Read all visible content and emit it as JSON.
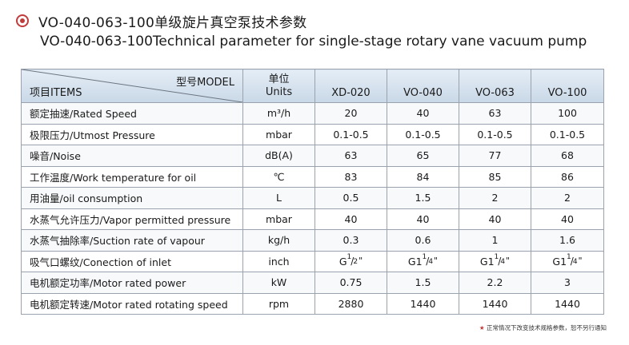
{
  "title": {
    "cn": "VO-040-063-100单级旋片真空泵技术参数",
    "en": "VO-040-063-100Technical parameter for single-stage rotary vane vacuum pump"
  },
  "table": {
    "header": {
      "model": "型号MODEL",
      "items": "项目ITEMS",
      "units_cn": "单位",
      "units_en": "Units",
      "models": [
        "XD-020",
        "VO-040",
        "VO-063",
        "VO-100"
      ]
    },
    "rows": [
      {
        "label": "额定抽速/Rated Speed",
        "unit": "m³/h",
        "values": [
          "20",
          "40",
          "63",
          "100"
        ]
      },
      {
        "label": "极限压力/Utmost Pressure",
        "unit": "mbar",
        "values": [
          "0.1-0.5",
          "0.1-0.5",
          "0.1-0.5",
          "0.1-0.5"
        ]
      },
      {
        "label": "噪音/Noise",
        "unit": "dB(A)",
        "values": [
          "63",
          "65",
          "77",
          "68"
        ]
      },
      {
        "label": "工作温度/Work temperature for oil",
        "unit": "℃",
        "values": [
          "83",
          "84",
          "85",
          "86"
        ]
      },
      {
        "label": "用油量/oil consumption",
        "unit": "L",
        "values": [
          "0.5",
          "1.5",
          "2",
          "2"
        ]
      },
      {
        "label": "水蒸气允许压力/Vapor permitted pressure",
        "unit": "mbar",
        "values": [
          "40",
          "40",
          "40",
          "40"
        ]
      },
      {
        "label": "水蒸气抽除率/Suction rate of vapour",
        "unit": "kg/h",
        "values": [
          "0.3",
          "0.6",
          "1",
          "1.6"
        ]
      },
      {
        "label": "吸气口螺纹/Conection of inlet",
        "unit": "inch",
        "fractions": [
          {
            "whole": "G",
            "num": "1",
            "den": "2",
            "mark": "\""
          },
          {
            "whole": "G1",
            "num": "1",
            "den": "4",
            "mark": "\""
          },
          {
            "whole": "G1",
            "num": "1",
            "den": "4",
            "mark": "\""
          },
          {
            "whole": "G1",
            "num": "1",
            "den": "4",
            "mark": "\""
          }
        ]
      },
      {
        "label": "电机额定功率/Motor rated power",
        "unit": "kW",
        "values": [
          "0.75",
          "1.5",
          "2.2",
          "3"
        ]
      },
      {
        "label": "电机额定转速/Motor rated rotating speed",
        "unit": "rpm",
        "values": [
          "2880",
          "1440",
          "1440",
          "1440"
        ]
      }
    ]
  },
  "note": {
    "star": "★",
    "text": "正常情况下改变技术规格参数，恕不另行通知"
  },
  "colors": {
    "accent": "#c23b3b",
    "header_bg": "#d6e2ee",
    "border": "#9aa3ad"
  }
}
